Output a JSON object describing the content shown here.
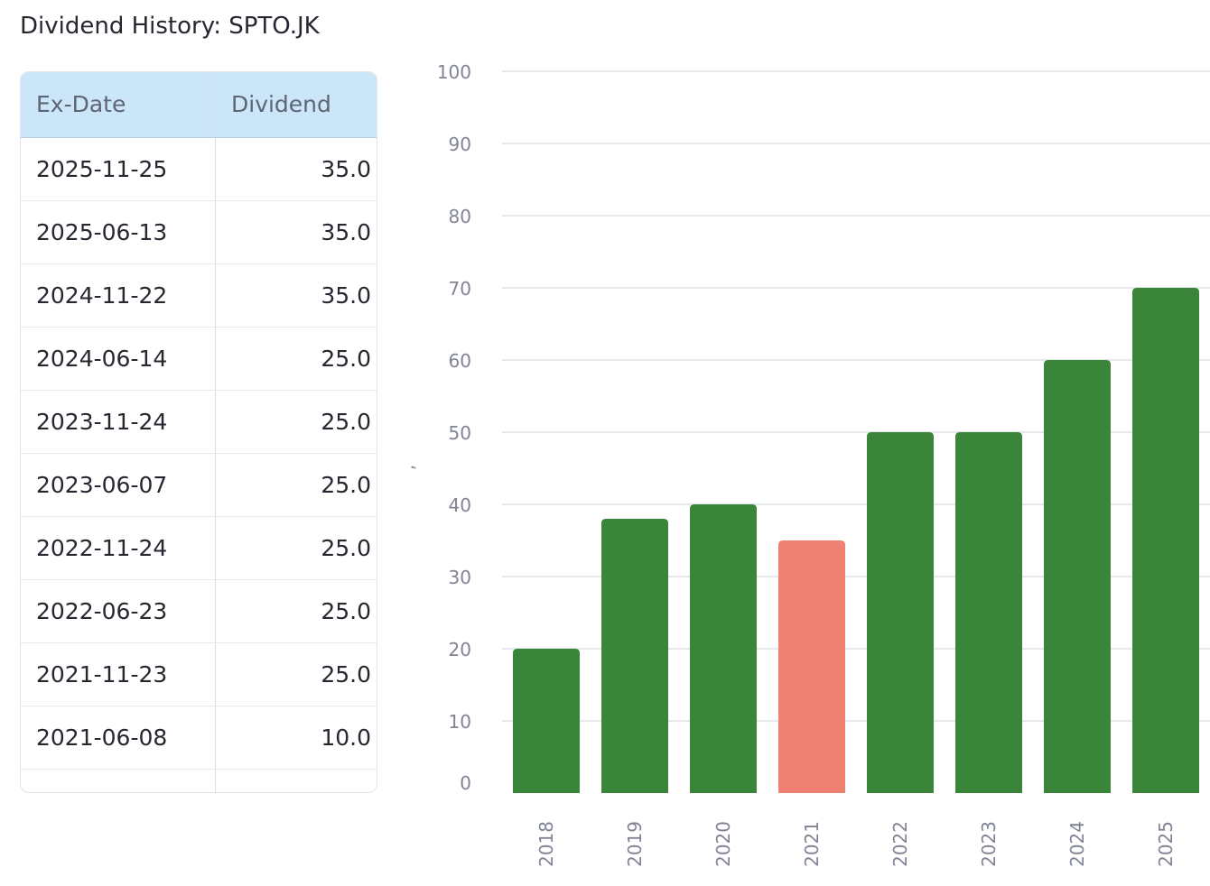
{
  "title": "Dividend History: SPTO.JK",
  "table": {
    "headers": [
      "Ex-Date",
      "Dividend"
    ],
    "rows": [
      {
        "date": "2025-11-25",
        "dividend": "35.0"
      },
      {
        "date": "2025-06-13",
        "dividend": "35.0"
      },
      {
        "date": "2024-11-22",
        "dividend": "35.0"
      },
      {
        "date": "2024-06-14",
        "dividend": "25.0"
      },
      {
        "date": "2023-11-24",
        "dividend": "25.0"
      },
      {
        "date": "2023-06-07",
        "dividend": "25.0"
      },
      {
        "date": "2022-11-24",
        "dividend": "25.0"
      },
      {
        "date": "2022-06-23",
        "dividend": "25.0"
      },
      {
        "date": "2021-11-23",
        "dividend": "25.0"
      },
      {
        "date": "2021-06-08",
        "dividend": "10.0"
      }
    ]
  },
  "chart_data": {
    "type": "bar",
    "title": "",
    "xlabel": "",
    "ylabel": ",",
    "categories": [
      "2018",
      "2019",
      "2020",
      "2021",
      "2022",
      "2023",
      "2024",
      "2025"
    ],
    "values": [
      20,
      38,
      40,
      35,
      50,
      50,
      60,
      70
    ],
    "bar_colors": [
      "#3b853b",
      "#3b853b",
      "#3b853b",
      "#ef8172",
      "#3b853b",
      "#3b853b",
      "#3b853b",
      "#3b853b"
    ],
    "ylim": [
      0,
      100
    ],
    "yticks": [
      0,
      10,
      20,
      30,
      40,
      50,
      60,
      70,
      80,
      90,
      100
    ],
    "grid": true,
    "legend": "none"
  },
  "colors": {
    "increase": "#3b853b",
    "decrease": "#ef8172",
    "header_bg": "#cce6f9"
  }
}
